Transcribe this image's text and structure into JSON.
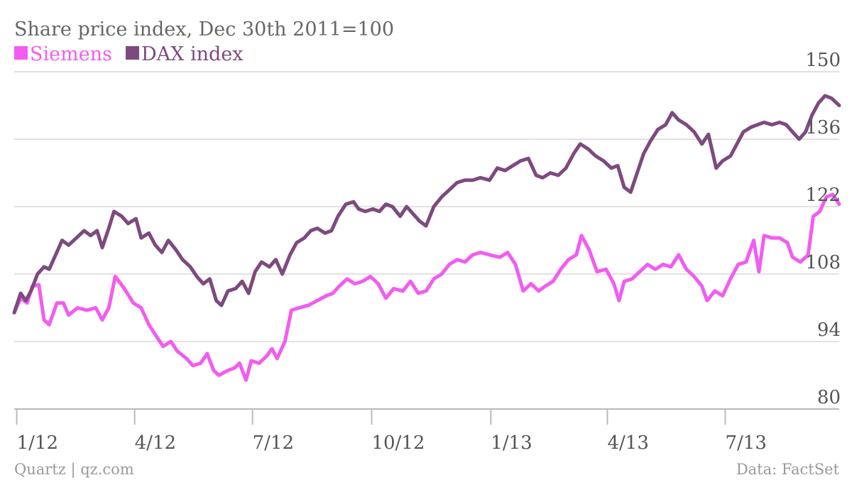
{
  "chart_data": {
    "type": "line",
    "title": "Share price index, Dec 30th 2011=100",
    "xlabel": "",
    "ylabel": "",
    "x_range": [
      "2011-12-30",
      "2013-09-27"
    ],
    "ylim": [
      80,
      150
    ],
    "yticks": [
      80,
      94,
      108,
      122,
      136,
      150
    ],
    "xticks": [
      {
        "label": "1/12",
        "date": "2012-01-01"
      },
      {
        "label": "4/12",
        "date": "2012-04-01"
      },
      {
        "label": "7/12",
        "date": "2012-07-01"
      },
      {
        "label": "10/12",
        "date": "2012-10-01"
      },
      {
        "label": "1/13",
        "date": "2013-01-01"
      },
      {
        "label": "4/13",
        "date": "2013-04-01"
      },
      {
        "label": "7/13",
        "date": "2013-07-01"
      }
    ],
    "grid": true,
    "legend_position": "top-left",
    "series": [
      {
        "name": "Siemens",
        "color": "#f25cf0",
        "points": [
          [
            "2011-12-30",
            100.0
          ],
          [
            "2012-01-04",
            103.0
          ],
          [
            "2012-01-09",
            102.0
          ],
          [
            "2012-01-13",
            105.5
          ],
          [
            "2012-01-18",
            105.8
          ],
          [
            "2012-01-22",
            98.5
          ],
          [
            "2012-01-26",
            97.5
          ],
          [
            "2012-02-01",
            102.0
          ],
          [
            "2012-02-06",
            102.0
          ],
          [
            "2012-02-10",
            99.5
          ],
          [
            "2012-02-17",
            101.0
          ],
          [
            "2012-02-24",
            100.5
          ],
          [
            "2012-03-02",
            101.0
          ],
          [
            "2012-03-07",
            98.5
          ],
          [
            "2012-03-12",
            101.0
          ],
          [
            "2012-03-17",
            107.5
          ],
          [
            "2012-03-24",
            105.0
          ],
          [
            "2012-03-31",
            102.0
          ],
          [
            "2012-04-06",
            101.0
          ],
          [
            "2012-04-12",
            97.5
          ],
          [
            "2012-04-18",
            95.0
          ],
          [
            "2012-04-23",
            93.0
          ],
          [
            "2012-04-29",
            94.0
          ],
          [
            "2012-05-04",
            92.0
          ],
          [
            "2012-05-11",
            90.5
          ],
          [
            "2012-05-16",
            89.0
          ],
          [
            "2012-05-22",
            89.5
          ],
          [
            "2012-05-27",
            91.5
          ],
          [
            "2012-06-01",
            88.0
          ],
          [
            "2012-06-05",
            87.0
          ],
          [
            "2012-06-12",
            88.0
          ],
          [
            "2012-06-17",
            88.5
          ],
          [
            "2012-06-21",
            89.5
          ],
          [
            "2012-06-26",
            86.0
          ],
          [
            "2012-06-30",
            90.0
          ],
          [
            "2012-07-06",
            89.5
          ],
          [
            "2012-07-12",
            91.0
          ],
          [
            "2012-07-16",
            92.5
          ],
          [
            "2012-07-20",
            90.5
          ],
          [
            "2012-07-26",
            94.0
          ],
          [
            "2012-07-31",
            100.5
          ],
          [
            "2012-08-06",
            101.0
          ],
          [
            "2012-08-13",
            101.5
          ],
          [
            "2012-08-20",
            102.5
          ],
          [
            "2012-08-27",
            103.5
          ],
          [
            "2012-09-01",
            104.0
          ],
          [
            "2012-09-06",
            105.5
          ],
          [
            "2012-09-12",
            107.0
          ],
          [
            "2012-09-18",
            106.0
          ],
          [
            "2012-09-24",
            106.5
          ],
          [
            "2012-09-30",
            107.5
          ],
          [
            "2012-10-06",
            106.0
          ],
          [
            "2012-10-12",
            103.0
          ],
          [
            "2012-10-18",
            105.0
          ],
          [
            "2012-10-25",
            104.5
          ],
          [
            "2012-10-31",
            106.5
          ],
          [
            "2012-11-06",
            104.0
          ],
          [
            "2012-11-12",
            104.5
          ],
          [
            "2012-11-18",
            107.0
          ],
          [
            "2012-11-24",
            108.0
          ],
          [
            "2012-11-30",
            110.0
          ],
          [
            "2012-12-06",
            111.0
          ],
          [
            "2012-12-12",
            110.5
          ],
          [
            "2012-12-18",
            112.0
          ],
          [
            "2012-12-24",
            112.5
          ],
          [
            "2012-12-31",
            112.0
          ],
          [
            "2013-01-08",
            111.5
          ],
          [
            "2013-01-14",
            112.5
          ],
          [
            "2013-01-20",
            110.0
          ],
          [
            "2013-01-26",
            104.5
          ],
          [
            "2013-02-01",
            106.0
          ],
          [
            "2013-02-07",
            104.5
          ],
          [
            "2013-02-12",
            105.5
          ],
          [
            "2013-02-18",
            106.5
          ],
          [
            "2013-02-24",
            109.0
          ],
          [
            "2013-03-02",
            111.0
          ],
          [
            "2013-03-08",
            112.0
          ],
          [
            "2013-03-12",
            116.0
          ],
          [
            "2013-03-18",
            113.0
          ],
          [
            "2013-03-24",
            108.5
          ],
          [
            "2013-03-31",
            109.0
          ],
          [
            "2013-04-06",
            106.0
          ],
          [
            "2013-04-10",
            102.5
          ],
          [
            "2013-04-14",
            106.5
          ],
          [
            "2013-04-20",
            107.0
          ],
          [
            "2013-04-26",
            108.5
          ],
          [
            "2013-05-02",
            110.0
          ],
          [
            "2013-05-08",
            109.0
          ],
          [
            "2013-05-14",
            110.0
          ],
          [
            "2013-05-20",
            109.5
          ],
          [
            "2013-05-26",
            112.0
          ],
          [
            "2013-06-01",
            109.0
          ],
          [
            "2013-06-07",
            107.5
          ],
          [
            "2013-06-13",
            105.5
          ],
          [
            "2013-06-17",
            102.5
          ],
          [
            "2013-06-23",
            104.5
          ],
          [
            "2013-06-29",
            103.5
          ],
          [
            "2013-07-05",
            107.0
          ],
          [
            "2013-07-11",
            110.0
          ],
          [
            "2013-07-17",
            110.5
          ],
          [
            "2013-07-23",
            115.0
          ],
          [
            "2013-07-27",
            108.5
          ],
          [
            "2013-07-31",
            116.0
          ],
          [
            "2013-08-06",
            115.5
          ],
          [
            "2013-08-12",
            115.5
          ],
          [
            "2013-08-18",
            114.5
          ],
          [
            "2013-08-22",
            111.5
          ],
          [
            "2013-08-28",
            110.5
          ],
          [
            "2013-09-03",
            112.0
          ],
          [
            "2013-09-07",
            120.0
          ],
          [
            "2013-09-12",
            121.0
          ],
          [
            "2013-09-17",
            124.0
          ],
          [
            "2013-09-22",
            124.5
          ],
          [
            "2013-09-27",
            122.5
          ]
        ]
      },
      {
        "name": "DAX index",
        "color": "#7d4a7e",
        "points": [
          [
            "2011-12-30",
            100.0
          ],
          [
            "2012-01-04",
            104.0
          ],
          [
            "2012-01-08",
            102.5
          ],
          [
            "2012-01-12",
            104.5
          ],
          [
            "2012-01-17",
            108.0
          ],
          [
            "2012-01-22",
            109.5
          ],
          [
            "2012-01-26",
            109.0
          ],
          [
            "2012-01-31",
            112.0
          ],
          [
            "2012-02-05",
            115.0
          ],
          [
            "2012-02-10",
            114.0
          ],
          [
            "2012-02-16",
            115.5
          ],
          [
            "2012-02-22",
            117.0
          ],
          [
            "2012-02-27",
            116.0
          ],
          [
            "2012-03-03",
            117.0
          ],
          [
            "2012-03-07",
            113.5
          ],
          [
            "2012-03-12",
            117.5
          ],
          [
            "2012-03-16",
            121.0
          ],
          [
            "2012-03-22",
            120.0
          ],
          [
            "2012-03-27",
            118.5
          ],
          [
            "2012-04-02",
            119.5
          ],
          [
            "2012-04-06",
            115.5
          ],
          [
            "2012-04-12",
            116.5
          ],
          [
            "2012-04-17",
            114.0
          ],
          [
            "2012-04-22",
            112.5
          ],
          [
            "2012-04-27",
            115.0
          ],
          [
            "2012-05-03",
            113.0
          ],
          [
            "2012-05-08",
            111.0
          ],
          [
            "2012-05-14",
            109.5
          ],
          [
            "2012-05-19",
            107.5
          ],
          [
            "2012-05-24",
            106.0
          ],
          [
            "2012-05-29",
            107.0
          ],
          [
            "2012-06-03",
            102.5
          ],
          [
            "2012-06-07",
            101.5
          ],
          [
            "2012-06-12",
            104.5
          ],
          [
            "2012-06-18",
            105.0
          ],
          [
            "2012-06-23",
            106.5
          ],
          [
            "2012-06-28",
            104.0
          ],
          [
            "2012-07-03",
            108.5
          ],
          [
            "2012-07-08",
            110.5
          ],
          [
            "2012-07-14",
            109.5
          ],
          [
            "2012-07-19",
            111.0
          ],
          [
            "2012-07-24",
            108.0
          ],
          [
            "2012-07-30",
            112.0
          ],
          [
            "2012-08-04",
            114.5
          ],
          [
            "2012-08-10",
            115.5
          ],
          [
            "2012-08-15",
            117.0
          ],
          [
            "2012-08-20",
            117.5
          ],
          [
            "2012-08-26",
            116.5
          ],
          [
            "2012-08-31",
            117.0
          ],
          [
            "2012-09-05",
            120.0
          ],
          [
            "2012-09-11",
            122.5
          ],
          [
            "2012-09-17",
            123.0
          ],
          [
            "2012-09-21",
            121.5
          ],
          [
            "2012-09-26",
            121.0
          ],
          [
            "2012-10-02",
            121.5
          ],
          [
            "2012-10-07",
            121.0
          ],
          [
            "2012-10-12",
            122.5
          ],
          [
            "2012-10-17",
            122.0
          ],
          [
            "2012-10-23",
            120.0
          ],
          [
            "2012-10-28",
            122.0
          ],
          [
            "2012-11-02",
            120.5
          ],
          [
            "2012-11-07",
            119.0
          ],
          [
            "2012-11-12",
            118.0
          ],
          [
            "2012-11-18",
            122.0
          ],
          [
            "2012-11-24",
            124.0
          ],
          [
            "2012-11-30",
            125.5
          ],
          [
            "2012-12-06",
            127.0
          ],
          [
            "2012-12-12",
            127.5
          ],
          [
            "2012-12-18",
            127.5
          ],
          [
            "2012-12-24",
            128.0
          ],
          [
            "2012-12-31",
            127.5
          ],
          [
            "2013-01-06",
            130.0
          ],
          [
            "2013-01-12",
            129.5
          ],
          [
            "2013-01-18",
            130.5
          ],
          [
            "2013-01-24",
            131.5
          ],
          [
            "2013-01-30",
            132.0
          ],
          [
            "2013-02-05",
            128.5
          ],
          [
            "2013-02-10",
            128.0
          ],
          [
            "2013-02-16",
            129.0
          ],
          [
            "2013-02-22",
            128.5
          ],
          [
            "2013-02-28",
            130.0
          ],
          [
            "2013-03-06",
            133.0
          ],
          [
            "2013-03-11",
            135.0
          ],
          [
            "2013-03-17",
            134.0
          ],
          [
            "2013-03-23",
            132.5
          ],
          [
            "2013-03-29",
            131.5
          ],
          [
            "2013-04-04",
            130.0
          ],
          [
            "2013-04-09",
            130.5
          ],
          [
            "2013-04-14",
            126.0
          ],
          [
            "2013-04-19",
            125.0
          ],
          [
            "2013-04-24",
            129.0
          ],
          [
            "2013-04-29",
            133.0
          ],
          [
            "2013-05-04",
            135.5
          ],
          [
            "2013-05-10",
            138.0
          ],
          [
            "2013-05-16",
            139.0
          ],
          [
            "2013-05-21",
            141.5
          ],
          [
            "2013-05-26",
            140.0
          ],
          [
            "2013-06-01",
            139.0
          ],
          [
            "2013-06-07",
            137.5
          ],
          [
            "2013-06-13",
            135.0
          ],
          [
            "2013-06-18",
            137.0
          ],
          [
            "2013-06-24",
            130.0
          ],
          [
            "2013-06-29",
            131.5
          ],
          [
            "2013-07-05",
            132.5
          ],
          [
            "2013-07-10",
            135.0
          ],
          [
            "2013-07-15",
            137.5
          ],
          [
            "2013-07-21",
            138.5
          ],
          [
            "2013-07-26",
            139.0
          ],
          [
            "2013-07-31",
            139.5
          ],
          [
            "2013-08-06",
            139.0
          ],
          [
            "2013-08-12",
            139.5
          ],
          [
            "2013-08-17",
            139.0
          ],
          [
            "2013-08-22",
            137.5
          ],
          [
            "2013-08-27",
            136.0
          ],
          [
            "2013-09-01",
            137.5
          ],
          [
            "2013-09-06",
            141.0
          ],
          [
            "2013-09-11",
            143.5
          ],
          [
            "2013-09-16",
            145.0
          ],
          [
            "2013-09-21",
            144.5
          ],
          [
            "2013-09-27",
            143.0
          ]
        ]
      }
    ]
  },
  "footer": {
    "source_left": "Quartz | qz.com",
    "source_right": "Data: FactSet"
  }
}
